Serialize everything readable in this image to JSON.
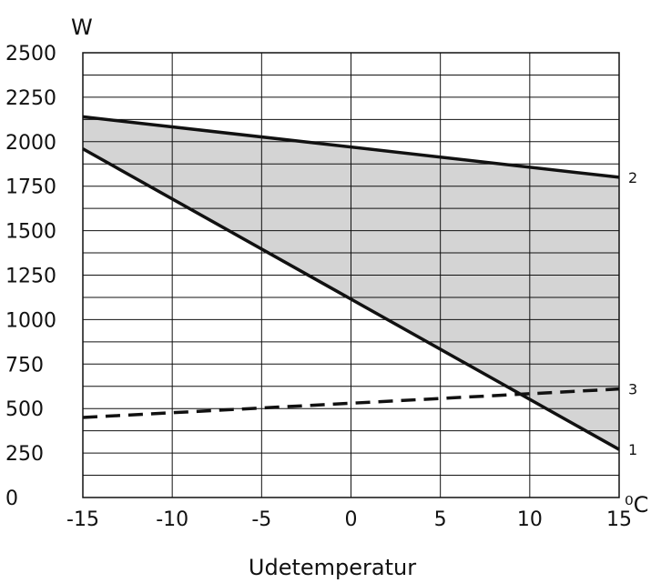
{
  "chart_data": {
    "type": "line",
    "xlabel": "Udetemperatur",
    "ylabel": "W",
    "x_unit": "⁰C",
    "xlim": [
      -15,
      15
    ],
    "ylim": [
      0,
      2500
    ],
    "x_ticks": [
      "-15",
      "-10",
      "-5",
      "0",
      "5",
      "10",
      "15"
    ],
    "y_ticks": [
      "0",
      "250",
      "500",
      "750",
      "1000",
      "1250",
      "1500",
      "1750",
      "2000",
      "2250",
      "2500"
    ],
    "grid": true,
    "shaded_region": {
      "between": [
        "1",
        "2"
      ],
      "color": "#d4d4d4"
    },
    "series": [
      {
        "name": "1",
        "style": "solid",
        "x": [
          -15,
          15
        ],
        "y": [
          1960,
          270
        ]
      },
      {
        "name": "2",
        "style": "solid",
        "x": [
          -15,
          15
        ],
        "y": [
          2140,
          1800
        ]
      },
      {
        "name": "3",
        "style": "dashed",
        "x": [
          -15,
          15
        ],
        "y": [
          450,
          610
        ]
      }
    ]
  }
}
